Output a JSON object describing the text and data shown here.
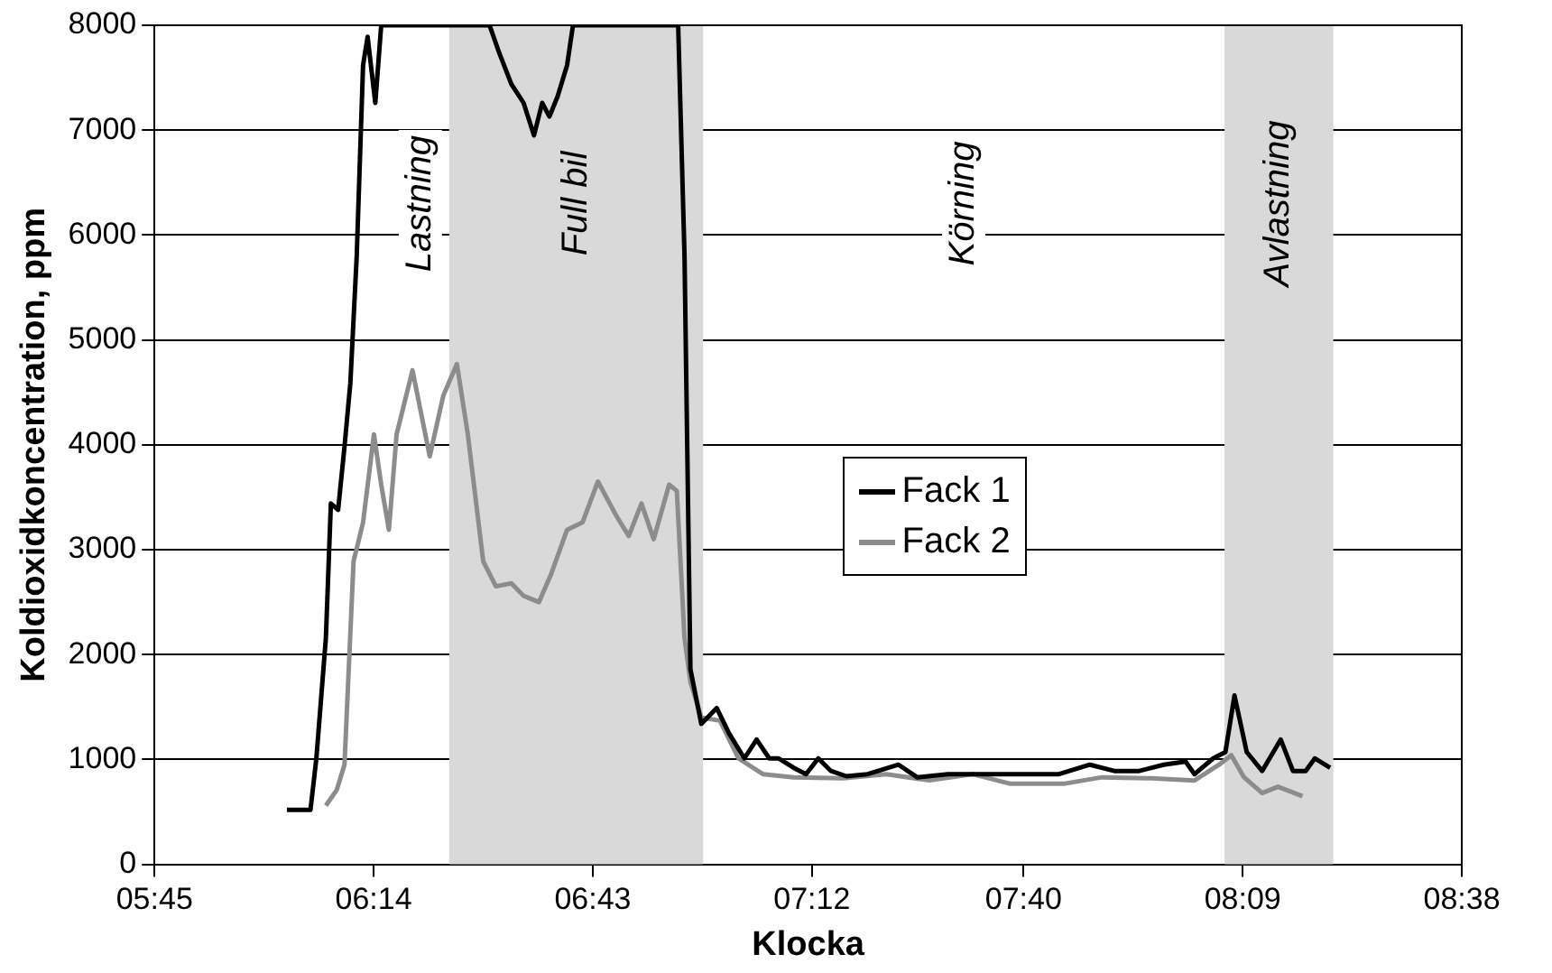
{
  "chart_data": {
    "type": "line",
    "xlabel": "Klocka",
    "ylabel": "Koldioxidkoncentration, ppm",
    "xlim": [
      5.75,
      8.6333
    ],
    "xticks": [
      {
        "value": 5.75,
        "label": "05:45"
      },
      {
        "value": 6.2333,
        "label": "06:14"
      },
      {
        "value": 6.7167,
        "label": "06:43"
      },
      {
        "value": 7.2,
        "label": "07:12"
      },
      {
        "value": 7.6667,
        "label": "07:40"
      },
      {
        "value": 8.15,
        "label": "08:09"
      },
      {
        "value": 8.6333,
        "label": "08:38"
      }
    ],
    "ylim": [
      0,
      8000
    ],
    "yticks": [
      0,
      1000,
      2000,
      3000,
      4000,
      5000,
      6000,
      7000,
      8000
    ],
    "grid": "y",
    "legend": "center",
    "marker": "none",
    "line_style": "solid",
    "bands": [
      {
        "axis": "x",
        "from": 6.4,
        "to": 6.96,
        "label": "Full bil",
        "color": "#d9d9d9"
      },
      {
        "axis": "x",
        "from": 8.11,
        "to": 8.35,
        "label": "Avlastning",
        "color": "#d9d9d9"
      }
    ],
    "annotations": [
      "Lastning",
      "Körning"
    ],
    "series": [
      {
        "name": "Fack 1",
        "color": "#000000",
        "x": [
          6.042,
          6.094,
          6.107,
          6.128,
          6.139,
          6.155,
          6.169,
          6.182,
          6.196,
          6.21,
          6.22,
          6.237,
          6.25,
          6.489,
          6.51,
          6.537,
          6.564,
          6.587,
          6.605,
          6.621,
          6.639,
          6.66,
          6.673,
          6.905,
          6.919,
          6.932,
          6.956,
          6.99,
          7.017,
          7.051,
          7.078,
          7.106,
          7.126,
          7.16,
          7.187,
          7.214,
          7.242,
          7.276,
          7.323,
          7.391,
          7.432,
          7.5,
          7.568,
          7.643,
          7.745,
          7.813,
          7.867,
          7.922,
          7.976,
          8.024,
          8.044,
          8.085,
          8.112,
          8.132,
          8.159,
          8.193,
          8.234,
          8.261,
          8.289,
          8.309,
          8.343
        ],
        "values": [
          520,
          520,
          1010,
          2160,
          3440,
          3380,
          3980,
          4590,
          5800,
          7620,
          7890,
          7260,
          8000,
          8000,
          7740,
          7440,
          7260,
          6950,
          7260,
          7130,
          7320,
          7620,
          8000,
          8000,
          5800,
          1860,
          1340,
          1490,
          1250,
          1010,
          1190,
          1010,
          1010,
          920,
          860,
          1010,
          890,
          840,
          860,
          950,
          830,
          860,
          860,
          860,
          860,
          950,
          890,
          890,
          950,
          980,
          860,
          1010,
          1070,
          1610,
          1070,
          890,
          1190,
          890,
          890,
          1010,
          920
        ]
      },
      {
        "name": "Fack 2",
        "color": "#8c8c8c",
        "x": [
          6.128,
          6.152,
          6.169,
          6.189,
          6.21,
          6.234,
          6.25,
          6.267,
          6.284,
          6.319,
          6.357,
          6.387,
          6.417,
          6.441,
          6.475,
          6.503,
          6.537,
          6.564,
          6.598,
          6.625,
          6.66,
          6.694,
          6.728,
          6.769,
          6.796,
          6.824,
          6.851,
          6.885,
          6.902,
          6.919,
          6.932,
          6.956,
          6.997,
          7.038,
          7.092,
          7.16,
          7.269,
          7.364,
          7.459,
          7.554,
          7.636,
          7.758,
          7.84,
          7.949,
          8.044,
          8.098,
          8.125,
          8.153,
          8.193,
          8.228,
          8.282
        ],
        "values": [
          560,
          710,
          950,
          2890,
          3260,
          4100,
          3620,
          3190,
          4100,
          4710,
          3890,
          4470,
          4770,
          4100,
          2890,
          2650,
          2680,
          2560,
          2500,
          2770,
          3190,
          3260,
          3650,
          3320,
          3130,
          3440,
          3100,
          3620,
          3560,
          2160,
          1740,
          1400,
          1370,
          1010,
          860,
          830,
          820,
          860,
          800,
          860,
          770,
          770,
          830,
          820,
          800,
          950,
          1040,
          830,
          680,
          740,
          650
        ]
      }
    ]
  }
}
